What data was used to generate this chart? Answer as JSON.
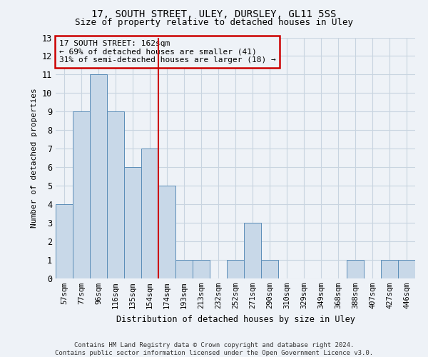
{
  "title1": "17, SOUTH STREET, ULEY, DURSLEY, GL11 5SS",
  "title2": "Size of property relative to detached houses in Uley",
  "xlabel": "Distribution of detached houses by size in Uley",
  "ylabel": "Number of detached properties",
  "categories": [
    "57sqm",
    "77sqm",
    "96sqm",
    "116sqm",
    "135sqm",
    "154sqm",
    "174sqm",
    "193sqm",
    "213sqm",
    "232sqm",
    "252sqm",
    "271sqm",
    "290sqm",
    "310sqm",
    "329sqm",
    "349sqm",
    "368sqm",
    "388sqm",
    "407sqm",
    "427sqm",
    "446sqm"
  ],
  "values": [
    4,
    9,
    11,
    9,
    6,
    7,
    5,
    1,
    1,
    0,
    1,
    3,
    1,
    0,
    0,
    0,
    0,
    1,
    0,
    1,
    1
  ],
  "bar_color": "#c8d8e8",
  "bar_edgecolor": "#5b8db8",
  "ylim": [
    0,
    13
  ],
  "yticks": [
    0,
    1,
    2,
    3,
    4,
    5,
    6,
    7,
    8,
    9,
    10,
    11,
    12,
    13
  ],
  "vline_x": 5.5,
  "vline_color": "#cc0000",
  "annotation_text": "17 SOUTH STREET: 162sqm\n← 69% of detached houses are smaller (41)\n31% of semi-detached houses are larger (18) →",
  "annotation_box_color": "#cc0000",
  "footnote1": "Contains HM Land Registry data © Crown copyright and database right 2024.",
  "footnote2": "Contains public sector information licensed under the Open Government Licence v3.0.",
  "bg_color": "#eef2f7",
  "grid_color": "#c8d4e0"
}
